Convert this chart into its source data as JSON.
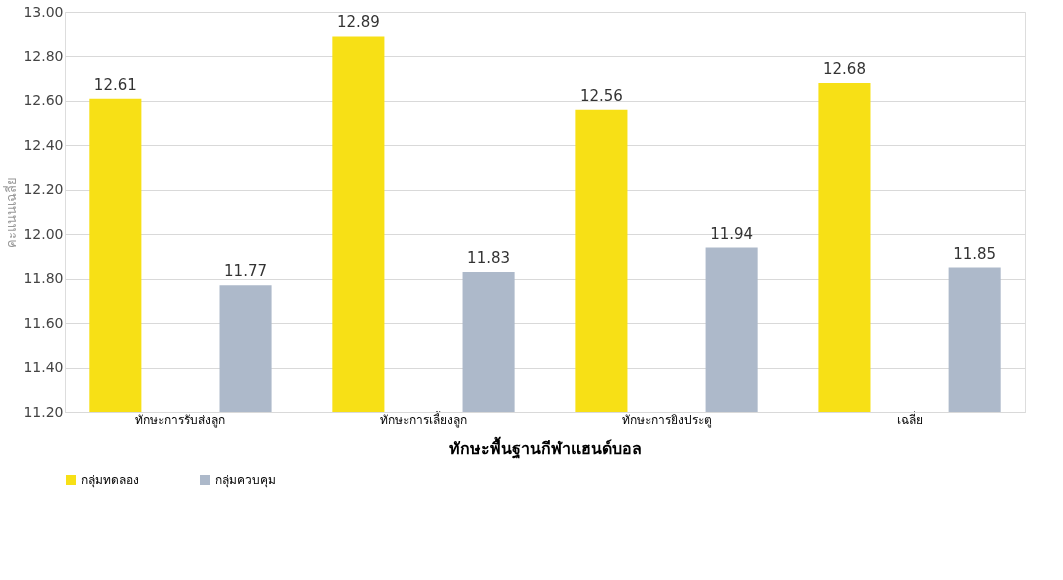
{
  "chart_data": {
    "type": "bar",
    "xlabel": "ทักษะพื้นฐานกีฬาแฮนด์บอล",
    "ylabel": "คะแนนเฉลี่ย",
    "categories": [
      "ทักษะการรับส่งลูก",
      "ทักษะการเลี้ยงลูก",
      "ทักษะการยิงประตู",
      "เฉลี่ย"
    ],
    "series": [
      {
        "name": "กลุ่มทดลอง",
        "color": "#f7e016",
        "values": [
          12.61,
          12.89,
          12.56,
          12.68
        ]
      },
      {
        "name": "กลุ่มควบคุม",
        "color": "#adb9ca",
        "values": [
          11.77,
          11.83,
          11.94,
          11.85
        ]
      }
    ],
    "ylim": [
      11.2,
      13.0
    ],
    "yticks": [
      {
        "value": 11.2,
        "label": "11.20"
      },
      {
        "value": 11.4,
        "label": "11.40"
      },
      {
        "value": 11.6,
        "label": "11.60"
      },
      {
        "value": 11.8,
        "label": "11.80"
      },
      {
        "value": 12.0,
        "label": "12.00"
      },
      {
        "value": 12.2,
        "label": "12.20"
      },
      {
        "value": 12.4,
        "label": "12.40"
      },
      {
        "value": 12.6,
        "label": "12.60"
      },
      {
        "value": 12.8,
        "label": "12.80"
      },
      {
        "value": 13.0,
        "label": "13.00"
      }
    ],
    "grid": "y",
    "legend": "bottom",
    "data_labels": true
  }
}
